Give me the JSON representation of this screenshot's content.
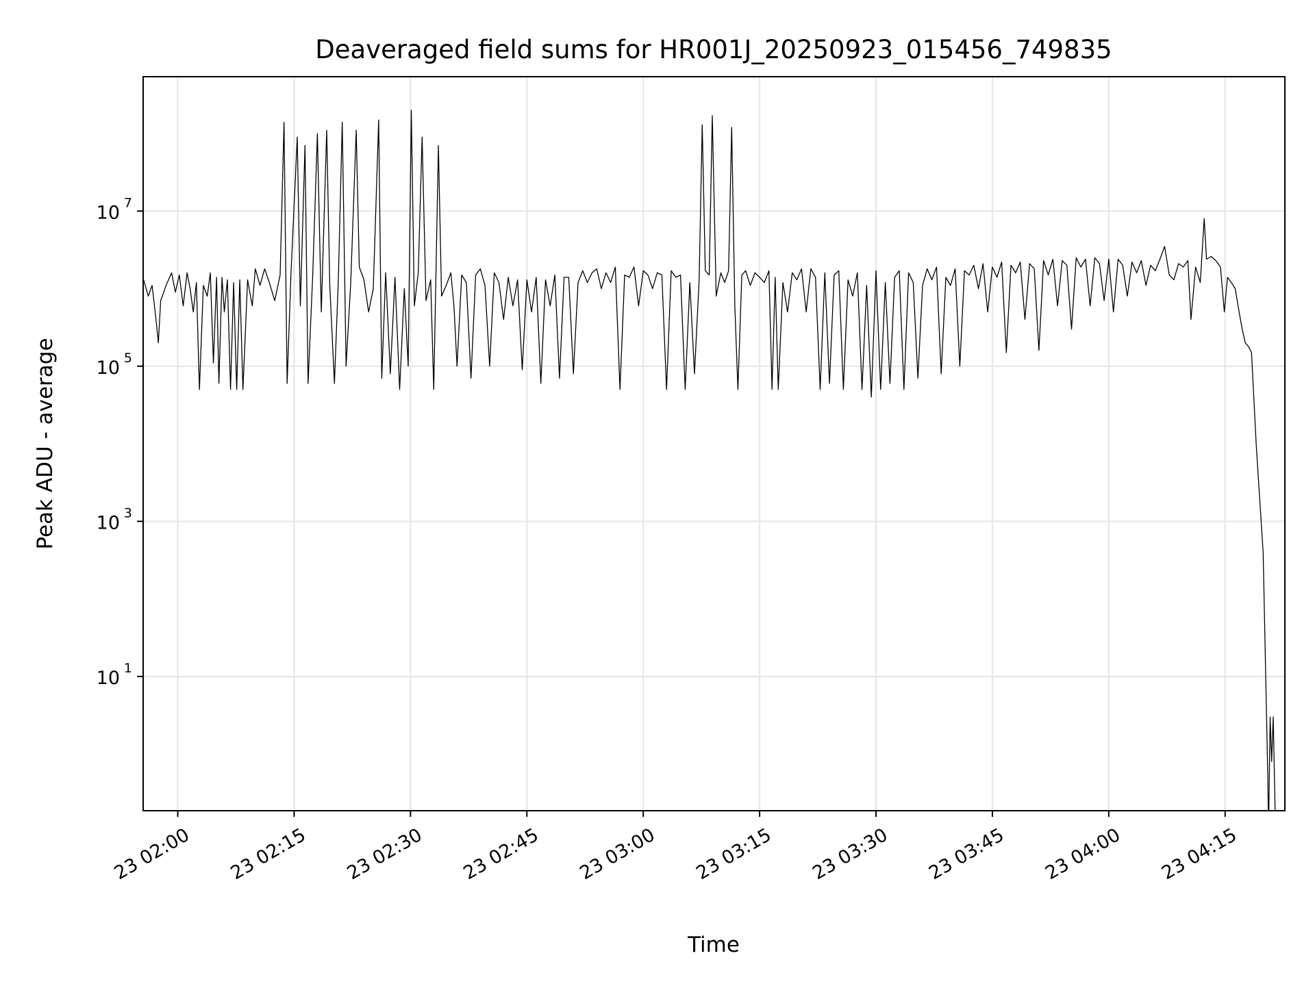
{
  "chart_data": {
    "type": "line",
    "title": "Deaveraged field sums for HR001J_20250923_015456_749835",
    "xlabel": "Time",
    "ylabel": "Peak ADU - average",
    "x_unit": "minutes after 23 02:00",
    "xlim": [
      -4.46,
      142.7
    ],
    "yscale": "log",
    "ylim": [
      0.186,
      540000000.0
    ],
    "grid": true,
    "line_color": "#000000",
    "grid_color": "#e5e5e5",
    "xticks": [
      {
        "value": 0,
        "label": "23 02:00"
      },
      {
        "value": 15,
        "label": "23 02:15"
      },
      {
        "value": 30,
        "label": "23 02:30"
      },
      {
        "value": 45,
        "label": "23 02:45"
      },
      {
        "value": 60,
        "label": "23 03:00"
      },
      {
        "value": 75,
        "label": "23 03:15"
      },
      {
        "value": 90,
        "label": "23 03:30"
      },
      {
        "value": 105,
        "label": "23 03:45"
      },
      {
        "value": 120,
        "label": "23 04:00"
      },
      {
        "value": 135,
        "label": "23 04:15"
      }
    ],
    "yticks": [
      {
        "value": 10,
        "base": "10",
        "exp": "1"
      },
      {
        "value": 1000,
        "base": "10",
        "exp": "3"
      },
      {
        "value": 100000,
        "base": "10",
        "exp": "5"
      },
      {
        "value": 10000000,
        "base": "10",
        "exp": "7"
      }
    ],
    "series": [
      {
        "name": "Peak ADU - average",
        "points": [
          [
            -4.4,
            1300000.0
          ],
          [
            -3.8,
            800000.0
          ],
          [
            -3.3,
            1100000.0
          ],
          [
            -2.8,
            400000.0
          ],
          [
            -2.5,
            200000.0
          ],
          [
            -2.2,
            700000.0
          ],
          [
            -1.5,
            1100000.0
          ],
          [
            -0.8,
            1600000.0
          ],
          [
            -0.3,
            900000.0
          ],
          [
            0.2,
            1500000.0
          ],
          [
            0.7,
            600000.0
          ],
          [
            1.2,
            1600000.0
          ],
          [
            1.6,
            1000000.0
          ],
          [
            2.0,
            500000.0
          ],
          [
            2.4,
            1200000.0
          ],
          [
            2.8,
            50000.0
          ],
          [
            3.3,
            1100000.0
          ],
          [
            3.8,
            800000.0
          ],
          [
            4.2,
            1600000.0
          ],
          [
            4.6,
            110000.0
          ],
          [
            5.0,
            1400000.0
          ],
          [
            5.3,
            60000.0
          ],
          [
            5.7,
            1400000.0
          ],
          [
            6.0,
            500000.0
          ],
          [
            6.4,
            1300000.0
          ],
          [
            6.8,
            50000.0
          ],
          [
            7.2,
            1200000.0
          ],
          [
            7.6,
            50000.0
          ],
          [
            8.0,
            1300000.0
          ],
          [
            8.4,
            50000.0
          ],
          [
            9.0,
            1300000.0
          ],
          [
            9.6,
            600000.0
          ],
          [
            10.0,
            1800000.0
          ],
          [
            10.6,
            1100000.0
          ],
          [
            11.2,
            1800000.0
          ],
          [
            11.8,
            1200000.0
          ],
          [
            12.5,
            700000.0
          ],
          [
            13.2,
            1500000.0
          ],
          [
            13.7,
            140000000.0
          ],
          [
            14.1,
            60000.0
          ],
          [
            14.6,
            1600000.0
          ],
          [
            15.4,
            90000000.0
          ],
          [
            15.8,
            600000.0
          ],
          [
            16.4,
            70000000.0
          ],
          [
            16.8,
            60000.0
          ],
          [
            17.4,
            1500000.0
          ],
          [
            18.0,
            100000000.0
          ],
          [
            18.5,
            500000.0
          ],
          [
            19.2,
            110000000.0
          ],
          [
            19.6,
            1100000.0
          ],
          [
            20.2,
            60000.0
          ],
          [
            20.7,
            1300000.0
          ],
          [
            21.2,
            140000000.0
          ],
          [
            21.7,
            100000.0
          ],
          [
            22.3,
            1200000.0
          ],
          [
            23.0,
            110000000.0
          ],
          [
            23.4,
            1900000.0
          ],
          [
            24.0,
            1300000.0
          ],
          [
            24.6,
            500000.0
          ],
          [
            25.2,
            1000000.0
          ],
          [
            25.9,
            150000000.0
          ],
          [
            26.3,
            70000.0
          ],
          [
            26.8,
            1600000.0
          ],
          [
            27.4,
            80000.0
          ],
          [
            28.0,
            1400000.0
          ],
          [
            28.6,
            50000.0
          ],
          [
            29.2,
            1000000.0
          ],
          [
            29.7,
            100000.0
          ],
          [
            30.1,
            200000000.0
          ],
          [
            30.5,
            600000.0
          ],
          [
            31.0,
            1600000.0
          ],
          [
            31.5,
            90000000.0
          ],
          [
            32.0,
            700000.0
          ],
          [
            32.6,
            1300000.0
          ],
          [
            33.0,
            50000.0
          ],
          [
            33.6,
            70000000.0
          ],
          [
            34.0,
            800000.0
          ],
          [
            34.6,
            1100000.0
          ],
          [
            35.2,
            1600000.0
          ],
          [
            35.6,
            600000.0
          ],
          [
            36.0,
            100000.0
          ],
          [
            36.6,
            1500000.0
          ],
          [
            37.2,
            1200000.0
          ],
          [
            37.8,
            70000.0
          ],
          [
            38.4,
            1500000.0
          ],
          [
            39.0,
            1800000.0
          ],
          [
            39.6,
            1100000.0
          ],
          [
            40.2,
            100000.0
          ],
          [
            40.8,
            1600000.0
          ],
          [
            41.4,
            1200000.0
          ],
          [
            42.0,
            400000.0
          ],
          [
            42.6,
            1400000.0
          ],
          [
            43.2,
            600000.0
          ],
          [
            43.8,
            1300000.0
          ],
          [
            44.4,
            90000.0
          ],
          [
            45.0,
            1300000.0
          ],
          [
            45.6,
            500000.0
          ],
          [
            46.2,
            1400000.0
          ],
          [
            46.8,
            60000.0
          ],
          [
            47.4,
            1300000.0
          ],
          [
            48.0,
            600000.0
          ],
          [
            48.6,
            1500000.0
          ],
          [
            49.2,
            70000.0
          ],
          [
            49.8,
            1400000.0
          ],
          [
            50.4,
            1400000.0
          ],
          [
            51.0,
            80000.0
          ],
          [
            51.6,
            1200000.0
          ],
          [
            52.2,
            1700000.0
          ],
          [
            52.8,
            1200000.0
          ],
          [
            53.4,
            1600000.0
          ],
          [
            54.0,
            1800000.0
          ],
          [
            54.6,
            1000000.0
          ],
          [
            55.2,
            1600000.0
          ],
          [
            55.8,
            1200000.0
          ],
          [
            56.4,
            1900000.0
          ],
          [
            57.0,
            50000.0
          ],
          [
            57.6,
            1500000.0
          ],
          [
            58.2,
            1400000.0
          ],
          [
            58.8,
            1900000.0
          ],
          [
            59.4,
            600000.0
          ],
          [
            60.0,
            1700000.0
          ],
          [
            60.6,
            1500000.0
          ],
          [
            61.2,
            1000000.0
          ],
          [
            61.8,
            1600000.0
          ],
          [
            62.4,
            1500000.0
          ],
          [
            63.0,
            50000.0
          ],
          [
            63.6,
            1700000.0
          ],
          [
            64.2,
            1400000.0
          ],
          [
            64.8,
            1500000.0
          ],
          [
            65.4,
            50000.0
          ],
          [
            66.0,
            1200000.0
          ],
          [
            66.6,
            80000.0
          ],
          [
            67.2,
            1300000.0
          ],
          [
            67.6,
            130000000.0
          ],
          [
            68.0,
            1700000.0
          ],
          [
            68.5,
            1500000.0
          ],
          [
            68.9,
            170000000.0
          ],
          [
            69.4,
            800000.0
          ],
          [
            70.0,
            1600000.0
          ],
          [
            70.5,
            1200000.0
          ],
          [
            71.0,
            1700000.0
          ],
          [
            71.4,
            120000000.0
          ],
          [
            71.8,
            600000.0
          ],
          [
            72.2,
            50000.0
          ],
          [
            72.7,
            1500000.0
          ],
          [
            73.2,
            1700000.0
          ],
          [
            73.8,
            1100000.0
          ],
          [
            74.4,
            1600000.0
          ],
          [
            75.0,
            1400000.0
          ],
          [
            75.6,
            1200000.0
          ],
          [
            76.2,
            1700000.0
          ],
          [
            76.6,
            50000.0
          ],
          [
            77.0,
            1400000.0
          ],
          [
            77.4,
            50000.0
          ],
          [
            78.0,
            1200000.0
          ],
          [
            78.6,
            500000.0
          ],
          [
            79.2,
            1600000.0
          ],
          [
            79.8,
            1300000.0
          ],
          [
            80.4,
            1800000.0
          ],
          [
            81.0,
            500000.0
          ],
          [
            81.6,
            1800000.0
          ],
          [
            82.2,
            1400000.0
          ],
          [
            82.8,
            50000.0
          ],
          [
            83.4,
            1600000.0
          ],
          [
            84.0,
            60000.0
          ],
          [
            84.6,
            1500000.0
          ],
          [
            85.2,
            1700000.0
          ],
          [
            85.8,
            50000.0
          ],
          [
            86.4,
            1300000.0
          ],
          [
            87.0,
            800000.0
          ],
          [
            87.6,
            1600000.0
          ],
          [
            88.2,
            50000.0
          ],
          [
            88.8,
            1100000.0
          ],
          [
            89.4,
            40000.0
          ],
          [
            90.0,
            1700000.0
          ],
          [
            90.6,
            50000.0
          ],
          [
            91.2,
            1200000.0
          ],
          [
            91.8,
            60000.0
          ],
          [
            92.4,
            1400000.0
          ],
          [
            93.0,
            1700000.0
          ],
          [
            93.6,
            50000.0
          ],
          [
            94.2,
            1600000.0
          ],
          [
            94.8,
            1200000.0
          ],
          [
            95.4,
            70000.0
          ],
          [
            96.0,
            1100000.0
          ],
          [
            96.6,
            1800000.0
          ],
          [
            97.2,
            1300000.0
          ],
          [
            97.8,
            1900000.0
          ],
          [
            98.4,
            80000.0
          ],
          [
            99.0,
            1400000.0
          ],
          [
            99.6,
            1100000.0
          ],
          [
            100.2,
            1800000.0
          ],
          [
            100.8,
            100000.0
          ],
          [
            101.4,
            1700000.0
          ],
          [
            102.0,
            1500000.0
          ],
          [
            102.6,
            2000000.0
          ],
          [
            103.2,
            1000000.0
          ],
          [
            103.8,
            2100000.0
          ],
          [
            104.4,
            500000.0
          ],
          [
            105.0,
            1900000.0
          ],
          [
            105.6,
            1400000.0
          ],
          [
            106.2,
            2200000.0
          ],
          [
            106.8,
            150000.0
          ],
          [
            107.4,
            2000000.0
          ],
          [
            108.0,
            1600000.0
          ],
          [
            108.6,
            2200000.0
          ],
          [
            109.2,
            400000.0
          ],
          [
            109.8,
            2100000.0
          ],
          [
            110.4,
            1800000.0
          ],
          [
            111.0,
            160000.0
          ],
          [
            111.6,
            2300000.0
          ],
          [
            112.2,
            1500000.0
          ],
          [
            112.8,
            2400000.0
          ],
          [
            113.4,
            600000.0
          ],
          [
            114.0,
            2300000.0
          ],
          [
            114.6,
            2000000.0
          ],
          [
            115.2,
            300000.0
          ],
          [
            115.8,
            2500000.0
          ],
          [
            116.4,
            1900000.0
          ],
          [
            117.0,
            2400000.0
          ],
          [
            117.6,
            600000.0
          ],
          [
            118.2,
            2500000.0
          ],
          [
            118.8,
            2100000.0
          ],
          [
            119.4,
            700000.0
          ],
          [
            120.0,
            2400000.0
          ],
          [
            120.6,
            500000.0
          ],
          [
            121.2,
            2400000.0
          ],
          [
            121.8,
            2000000.0
          ],
          [
            122.4,
            800000.0
          ],
          [
            123.0,
            2200000.0
          ],
          [
            123.6,
            1600000.0
          ],
          [
            124.2,
            2300000.0
          ],
          [
            124.8,
            1100000.0
          ],
          [
            125.4,
            2000000.0
          ],
          [
            126.0,
            1700000.0
          ],
          [
            126.6,
            2400000.0
          ],
          [
            127.2,
            3500000.0
          ],
          [
            127.8,
            1500000.0
          ],
          [
            128.4,
            1300000.0
          ],
          [
            129.0,
            2100000.0
          ],
          [
            129.6,
            1900000.0
          ],
          [
            130.2,
            2300000.0
          ],
          [
            130.6,
            400000.0
          ],
          [
            131.2,
            1900000.0
          ],
          [
            131.8,
            1200000.0
          ],
          [
            132.3,
            8000000.0
          ],
          [
            132.6,
            2400000.0
          ],
          [
            133.2,
            2600000.0
          ],
          [
            133.8,
            2300000.0
          ],
          [
            134.4,
            1900000.0
          ],
          [
            134.9,
            500000.0
          ],
          [
            135.3,
            1400000.0
          ],
          [
            135.8,
            1200000.0
          ],
          [
            136.3,
            1000000.0
          ],
          [
            136.8,
            500000.0
          ],
          [
            137.2,
            300000.0
          ],
          [
            137.6,
            200000.0
          ],
          [
            138.0,
            180000.0
          ],
          [
            138.4,
            150000.0
          ],
          [
            139.0,
            10000.0
          ],
          [
            139.9,
            400
          ],
          [
            140.5,
            0.5
          ],
          [
            140.6,
            0.1
          ],
          [
            140.8,
            3
          ],
          [
            141.0,
            0.8
          ],
          [
            141.2,
            3
          ],
          [
            141.5,
            0.1
          ]
        ]
      }
    ]
  }
}
